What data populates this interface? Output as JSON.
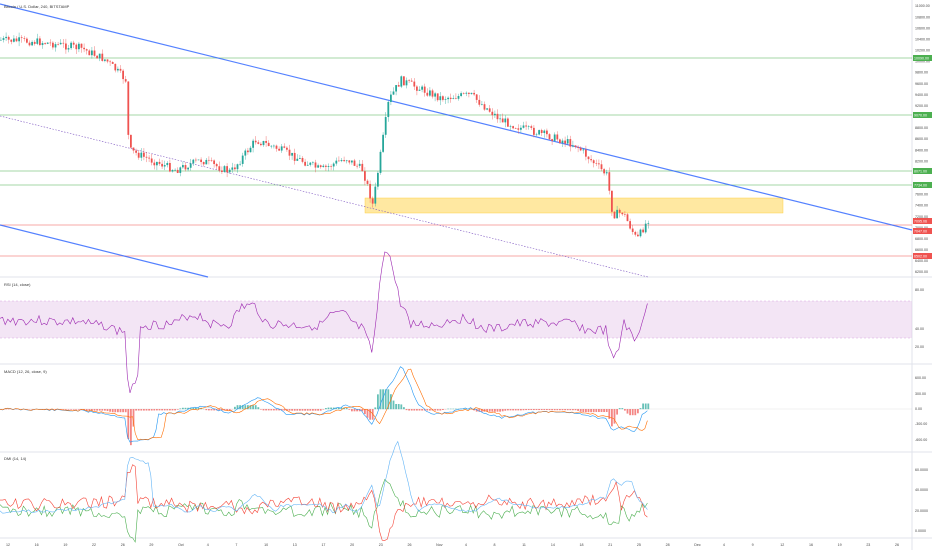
{
  "header": {
    "symbol_title": "Bitcoin / U.S. Dollar, 240, BITSTAMP"
  },
  "panes": {
    "rsi": {
      "label": "RSI (14, close)"
    },
    "macd": {
      "label": "MACD (12, 26, close, 9)"
    },
    "dmi": {
      "label": "DMI (14, 14)"
    }
  },
  "price_axis": {
    "ticks": [
      "11000.00",
      "10800.00",
      "10600.00",
      "10400.00",
      "10200.00",
      "10000.00",
      "9800.00",
      "9600.00",
      "9400.00",
      "9200.00",
      "9000.00",
      "8800.00",
      "8600.00",
      "8400.00",
      "8200.00",
      "8000.00",
      "7800.00",
      "7600.00",
      "7400.00",
      "7200.00",
      "7000.00",
      "6800.00",
      "6600.00",
      "6400.00",
      "6200.00"
    ],
    "tags": [
      {
        "text": "10090.00",
        "color": "#4caf50"
      },
      {
        "text": "9070.00",
        "color": "#4caf50"
      },
      {
        "text": "8071.00",
        "color": "#4caf50"
      },
      {
        "text": "7734.00",
        "color": "#4caf50"
      },
      {
        "text": "7095.06",
        "color": "#ef5350"
      },
      {
        "text": "7047.00",
        "color": "#ef5350"
      },
      {
        "text": "6502.00",
        "color": "#ef5350"
      }
    ]
  },
  "rsi_axis": {
    "ticks": [
      "80.00",
      "40.00",
      "20.00"
    ]
  },
  "macd_axis": {
    "ticks": [
      "600.00",
      "300.00",
      "0.00",
      "-300.00",
      "-600.00"
    ]
  },
  "dmi_axis": {
    "ticks": [
      "60.0000",
      "40.0000",
      "20.0000",
      "0.0000"
    ]
  },
  "time_axis": {
    "labels": [
      "12",
      "16",
      "19",
      "22",
      "26",
      "29",
      "Oct",
      "4",
      "7",
      "10",
      "13",
      "17",
      "20",
      "23",
      "26",
      "Nov",
      "4",
      "8",
      "11",
      "14",
      "18",
      "21",
      "25",
      "28",
      "Dec",
      "4",
      "9",
      "12",
      "16",
      "19",
      "23",
      "26"
    ]
  },
  "colors": {
    "up": "#26a69a",
    "down": "#ef5350",
    "trend": "#2962ff",
    "zone": "#ffd54f",
    "rsi": "#9c27b0"
  }
}
